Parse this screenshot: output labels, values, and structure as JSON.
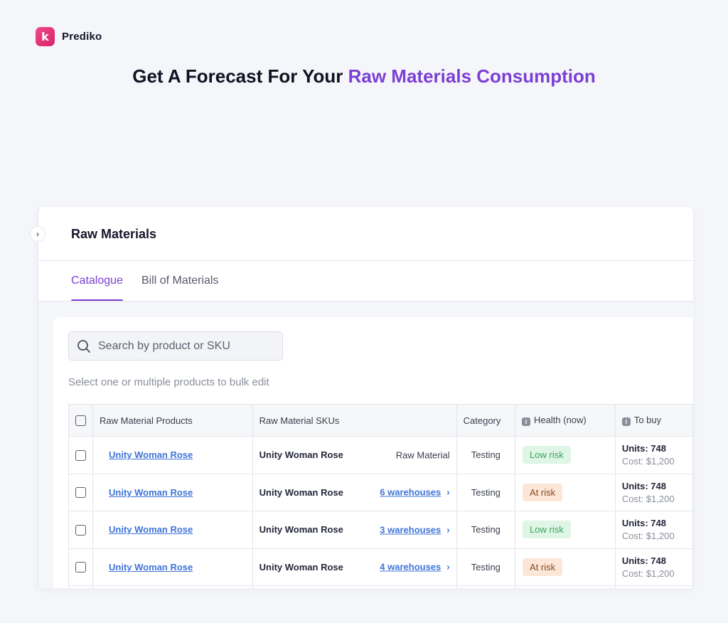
{
  "brand": {
    "logo_letter": "k",
    "name": "Prediko"
  },
  "headline": {
    "prefix": "Get A Forecast For Your ",
    "accent": "Raw Materials Consumption"
  },
  "panel": {
    "title": "Raw Materials"
  },
  "tabs": [
    {
      "label": "Catalogue",
      "active": true
    },
    {
      "label": "Bill of Materials",
      "active": false
    }
  ],
  "search": {
    "placeholder": "Search by product or SKU",
    "value": ""
  },
  "hint": "Select one or multiple products to bulk edit",
  "table": {
    "headers": {
      "product": "Raw Material Products",
      "sku": "Raw Material SKUs",
      "category": "Category",
      "health": "Health (now)",
      "tobuy": "To buy"
    },
    "rows": [
      {
        "product": "Unity Woman Rose",
        "sku": "Unity Woman Rose",
        "sku_detail": "Raw Material",
        "sku_link": false,
        "category": "Testing",
        "health": "Low risk",
        "health_level": "low",
        "units": "Units: 748",
        "cost": "Cost: $1,200"
      },
      {
        "product": "Unity Woman Rose",
        "sku": "Unity Woman Rose",
        "sku_detail": "6 warehouses",
        "sku_link": true,
        "category": "Testing",
        "health": "At risk",
        "health_level": "risk",
        "units": "Units: 748",
        "cost": "Cost: $1,200"
      },
      {
        "product": "Unity Woman Rose",
        "sku": "Unity Woman Rose",
        "sku_detail": "3 warehouses",
        "sku_link": true,
        "category": "Testing",
        "health": "Low risk",
        "health_level": "low",
        "units": "Units: 748",
        "cost": "Cost: $1,200"
      },
      {
        "product": "Unity Woman Rose",
        "sku": "Unity Woman Rose",
        "sku_detail": "4 warehouses",
        "sku_link": true,
        "category": "Testing",
        "health": "At risk",
        "health_level": "risk",
        "units": "Units: 748",
        "cost": "Cost: $1,200"
      }
    ]
  },
  "colors": {
    "accent": "#7b3fd6",
    "brand": "#e23778",
    "link": "#3f74d8",
    "low_risk_bg": "#dff5e5",
    "at_risk_bg": "#fbe6d7"
  }
}
